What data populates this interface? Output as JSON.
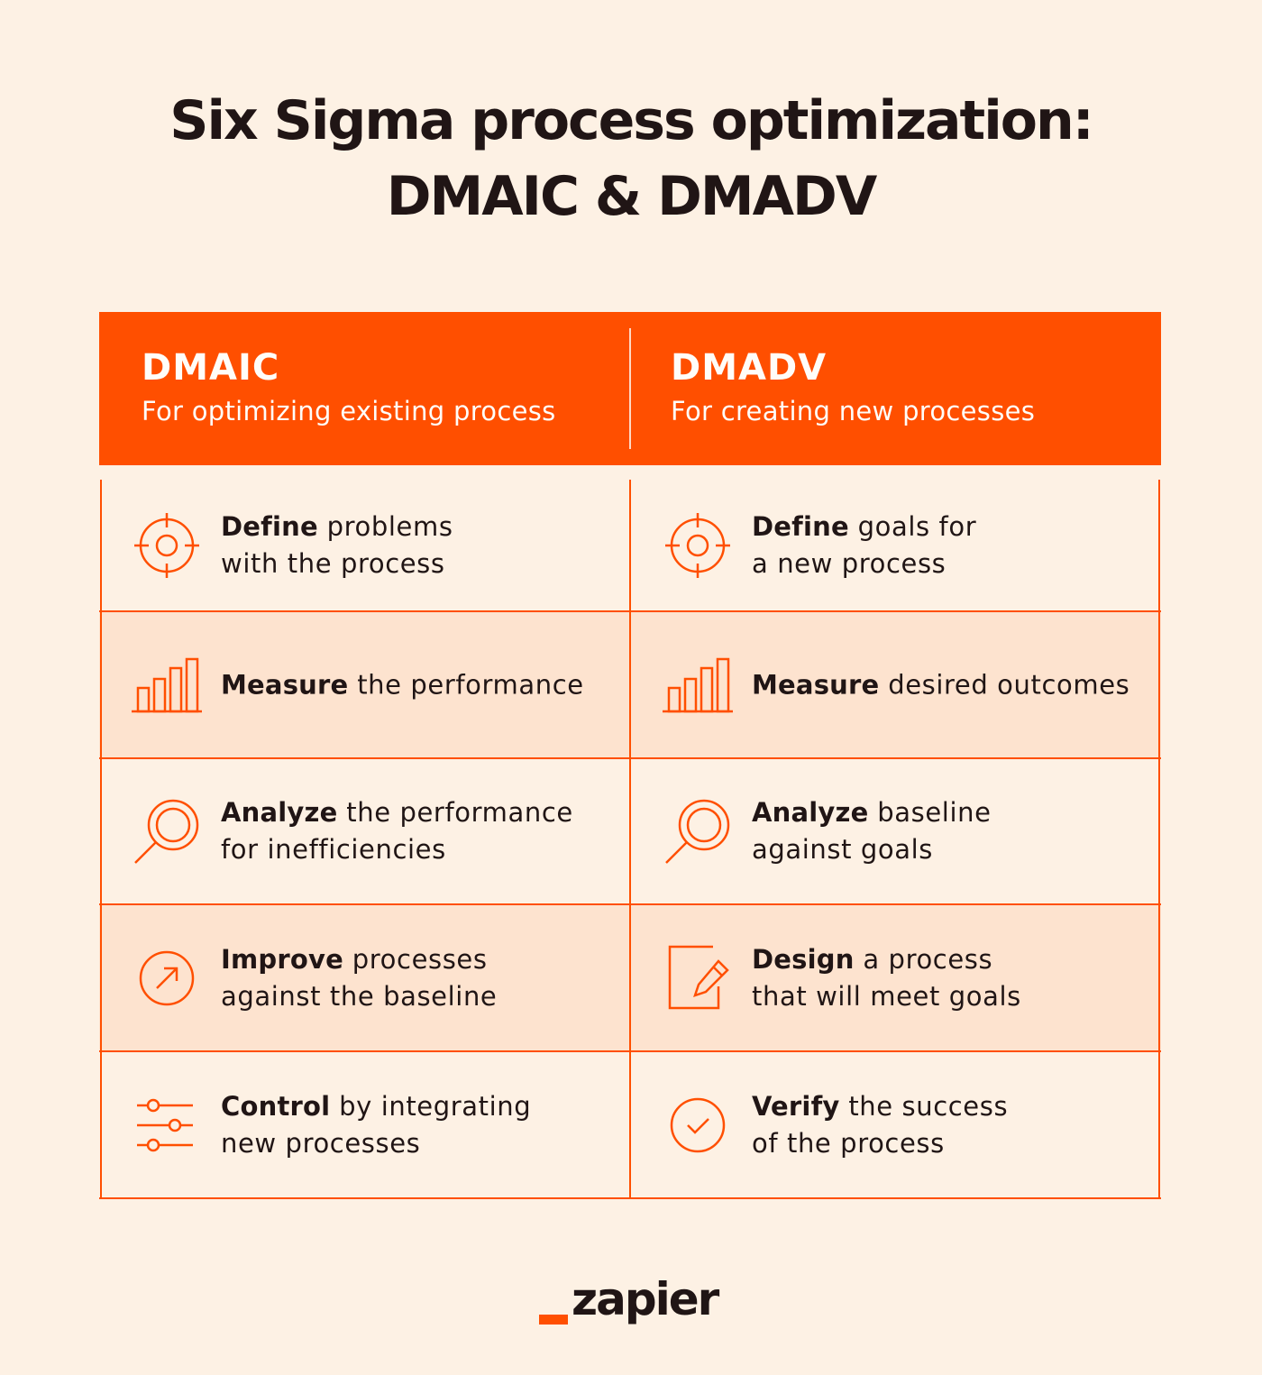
{
  "title": {
    "line1": "Six Sigma process optimization:",
    "line2": "DMAIC & DMADV"
  },
  "columns": [
    {
      "name": "DMAIC",
      "subtitle": "For optimizing existing process",
      "steps": [
        {
          "bold": "Define",
          "rest": " problems",
          "line2": "with the process",
          "icon": "target-icon"
        },
        {
          "bold": "Measure",
          "rest": " the performance",
          "line2": "",
          "icon": "bar-chart-icon"
        },
        {
          "bold": "Analyze",
          "rest": " the performance",
          "line2": "for inefficiencies",
          "icon": "magnifier-icon"
        },
        {
          "bold": "Improve",
          "rest": " processes",
          "line2": "against the baseline",
          "icon": "arrow-circle-icon"
        },
        {
          "bold": "Control",
          "rest": " by integrating",
          "line2": "new processes",
          "icon": "sliders-icon"
        }
      ]
    },
    {
      "name": "DMADV",
      "subtitle": "For creating new processes",
      "steps": [
        {
          "bold": "Define",
          "rest": " goals for",
          "line2": "a new process",
          "icon": "target-icon"
        },
        {
          "bold": "Measure",
          "rest": " desired outcomes",
          "line2": "",
          "icon": "bar-chart-icon"
        },
        {
          "bold": "Analyze",
          "rest": " baseline",
          "line2": "against goals",
          "icon": "magnifier-icon"
        },
        {
          "bold": "Design",
          "rest": " a process",
          "line2": "that will meet goals",
          "icon": "edit-document-icon"
        },
        {
          "bold": "Verify",
          "rest": " the success",
          "line2": "of the process",
          "icon": "check-circle-icon"
        }
      ]
    }
  ],
  "logo": {
    "wordmark": "zapier"
  },
  "colors": {
    "background": "#fdf1e4",
    "accent": "#ff4f00",
    "row_shade": "#fde3cf",
    "text": "#201515"
  }
}
